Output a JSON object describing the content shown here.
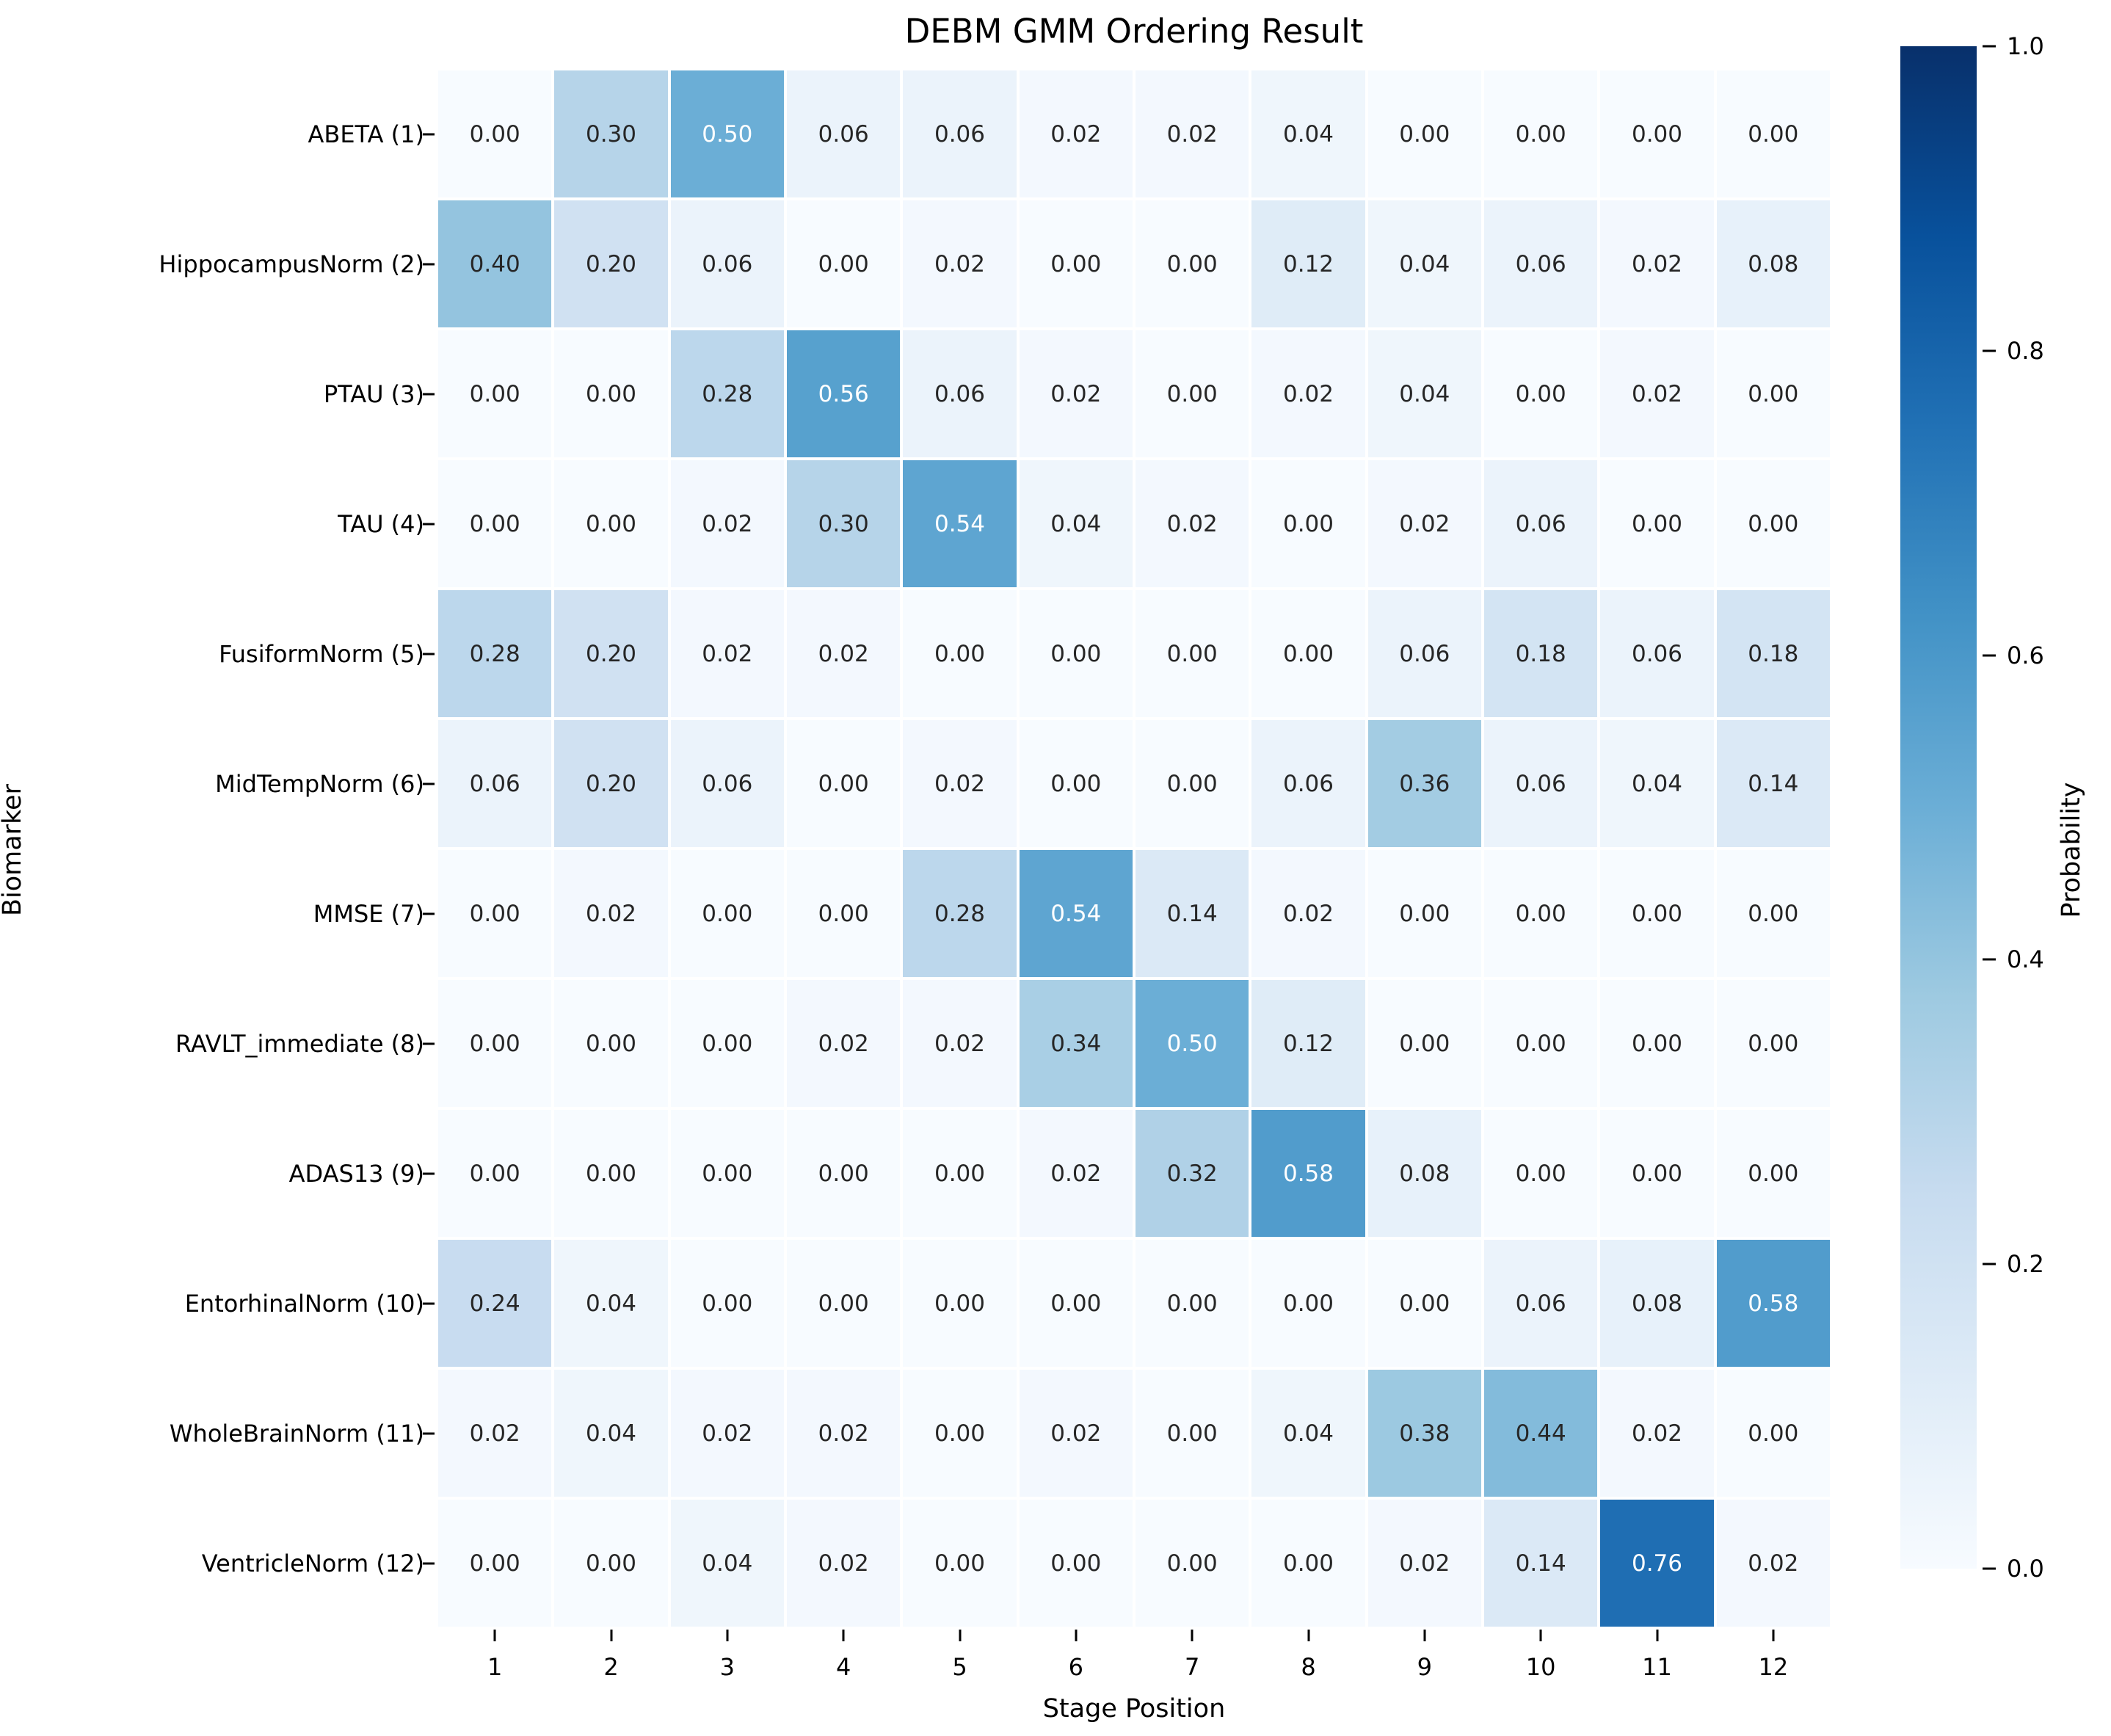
{
  "chart_data": {
    "type": "heatmap",
    "title": "DEBM GMM Ordering Result",
    "xlabel": "Stage Position",
    "ylabel": "Biomarker",
    "x_categories": [
      "1",
      "2",
      "3",
      "4",
      "5",
      "6",
      "7",
      "8",
      "9",
      "10",
      "11",
      "12"
    ],
    "y_categories": [
      "ABETA (1)",
      "HippocampusNorm (2)",
      "PTAU (3)",
      "TAU (4)",
      "FusiformNorm (5)",
      "MidTempNorm (6)",
      "MMSE (7)",
      "RAVLT_immediate (8)",
      "ADAS13 (9)",
      "EntorhinalNorm (10)",
      "WholeBrainNorm (11)",
      "VentricleNorm (12)"
    ],
    "values": [
      [
        0.0,
        0.3,
        0.5,
        0.06,
        0.06,
        0.02,
        0.02,
        0.04,
        0.0,
        0.0,
        0.0,
        0.0
      ],
      [
        0.4,
        0.2,
        0.06,
        0.0,
        0.02,
        0.0,
        0.0,
        0.12,
        0.04,
        0.06,
        0.02,
        0.08
      ],
      [
        0.0,
        0.0,
        0.28,
        0.56,
        0.06,
        0.02,
        0.0,
        0.02,
        0.04,
        0.0,
        0.02,
        0.0
      ],
      [
        0.0,
        0.0,
        0.02,
        0.3,
        0.54,
        0.04,
        0.02,
        0.0,
        0.02,
        0.06,
        0.0,
        0.0
      ],
      [
        0.28,
        0.2,
        0.02,
        0.02,
        0.0,
        0.0,
        0.0,
        0.0,
        0.06,
        0.18,
        0.06,
        0.18
      ],
      [
        0.06,
        0.2,
        0.06,
        0.0,
        0.02,
        0.0,
        0.0,
        0.06,
        0.36,
        0.06,
        0.04,
        0.14
      ],
      [
        0.0,
        0.02,
        0.0,
        0.0,
        0.28,
        0.54,
        0.14,
        0.02,
        0.0,
        0.0,
        0.0,
        0.0
      ],
      [
        0.0,
        0.0,
        0.0,
        0.02,
        0.02,
        0.34,
        0.5,
        0.12,
        0.0,
        0.0,
        0.0,
        0.0
      ],
      [
        0.0,
        0.0,
        0.0,
        0.0,
        0.0,
        0.02,
        0.32,
        0.58,
        0.08,
        0.0,
        0.0,
        0.0
      ],
      [
        0.24,
        0.04,
        0.0,
        0.0,
        0.0,
        0.0,
        0.0,
        0.0,
        0.0,
        0.06,
        0.08,
        0.58
      ],
      [
        0.02,
        0.04,
        0.02,
        0.02,
        0.0,
        0.02,
        0.0,
        0.04,
        0.38,
        0.44,
        0.02,
        0.0
      ],
      [
        0.0,
        0.0,
        0.04,
        0.02,
        0.0,
        0.0,
        0.0,
        0.0,
        0.02,
        0.14,
        0.76,
        0.02
      ]
    ],
    "value_format_decimals": 2,
    "colormap": "Blues",
    "vmin": 0.0,
    "vmax": 1.0,
    "grid": false,
    "colorbar": {
      "label": "Probability",
      "position": "right",
      "tick_labels": [
        "1.0",
        "0.8",
        "0.6",
        "0.4",
        "0.2",
        "0.0"
      ],
      "tick_values": [
        1.0,
        0.8,
        0.6,
        0.4,
        0.2,
        0.0
      ]
    },
    "colors": {
      "cmap_low": "#f7fbff",
      "cmap_high": "#08306b",
      "annotation_dark_text": "#262626",
      "annotation_light_text": "#ffffff",
      "background": "#ffffff"
    }
  }
}
